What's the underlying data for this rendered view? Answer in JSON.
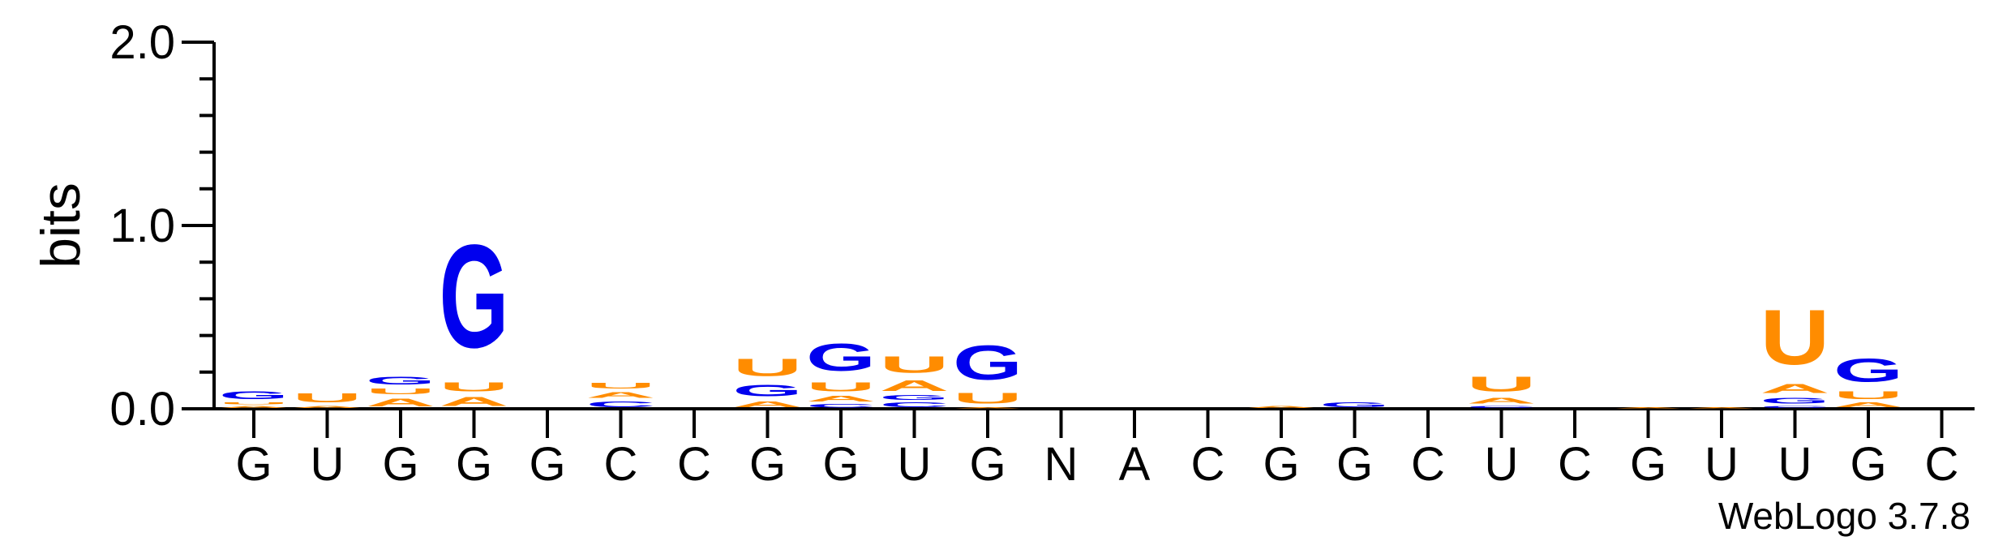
{
  "chart_data": {
    "type": "sequence-logo",
    "ylabel": "bits",
    "ylim": [
      0,
      2.0
    ],
    "yticks": [
      "0.0",
      "1.0",
      "2.0"
    ],
    "positions": [
      "G",
      "U",
      "G",
      "G",
      "G",
      "C",
      "C",
      "G",
      "G",
      "U",
      "G",
      "N",
      "A",
      "C",
      "G",
      "G",
      "C",
      "U",
      "C",
      "G",
      "U",
      "U",
      "G",
      "C"
    ],
    "letter_colors": {
      "G": "#0000ee",
      "U": "#ff8c00",
      "A": "#ff8c00",
      "C": "#0000ee"
    },
    "stacks": [
      [
        {
          "l": "A",
          "h": 0.02
        },
        {
          "l": "U",
          "h": 0.02
        },
        {
          "l": "G",
          "h": 0.07
        }
      ],
      [
        {
          "l": "A",
          "h": 0.02
        },
        {
          "l": "U",
          "h": 0.08
        }
      ],
      [
        {
          "l": "A",
          "h": 0.07
        },
        {
          "l": "U",
          "h": 0.05
        },
        {
          "l": "G",
          "h": 0.07
        }
      ],
      [
        {
          "l": "A",
          "h": 0.08
        },
        {
          "l": "U",
          "h": 0.08
        },
        {
          "l": "G",
          "h": 0.9
        }
      ],
      [],
      [
        {
          "l": "C",
          "h": 0.05
        },
        {
          "l": "A",
          "h": 0.05
        },
        {
          "l": "U",
          "h": 0.05
        }
      ],
      [],
      [
        {
          "l": "A",
          "h": 0.05
        },
        {
          "l": "G",
          "h": 0.1
        },
        {
          "l": "U",
          "h": 0.15
        }
      ],
      [
        {
          "l": "C",
          "h": 0.03
        },
        {
          "l": "A",
          "h": 0.05
        },
        {
          "l": "U",
          "h": 0.08
        },
        {
          "l": "G",
          "h": 0.24
        }
      ],
      [
        {
          "l": "C",
          "h": 0.04
        },
        {
          "l": "G",
          "h": 0.04
        },
        {
          "l": "A",
          "h": 0.09
        },
        {
          "l": "U",
          "h": 0.14
        }
      ],
      [
        {
          "l": "A",
          "h": 0.01
        },
        {
          "l": "U",
          "h": 0.09
        },
        {
          "l": "G",
          "h": 0.3
        }
      ],
      [],
      [],
      [],
      [
        {
          "l": "A",
          "h": 0.02
        }
      ],
      [
        {
          "l": "G",
          "h": 0.04
        }
      ],
      [],
      [
        {
          "l": "C",
          "h": 0.02
        },
        {
          "l": "A",
          "h": 0.05
        },
        {
          "l": "U",
          "h": 0.13
        }
      ],
      [],
      [
        {
          "l": "A",
          "h": 0.01
        }
      ],
      [
        {
          "l": "A",
          "h": 0.01
        }
      ],
      [
        {
          "l": "C",
          "h": 0.02
        },
        {
          "l": "G",
          "h": 0.05
        },
        {
          "l": "A",
          "h": 0.08
        },
        {
          "l": "U",
          "h": 0.48
        }
      ],
      [
        {
          "l": "A",
          "h": 0.04
        },
        {
          "l": "U",
          "h": 0.07
        },
        {
          "l": "G",
          "h": 0.2
        }
      ],
      []
    ]
  },
  "watermark": "WebLogo 3.7.8"
}
